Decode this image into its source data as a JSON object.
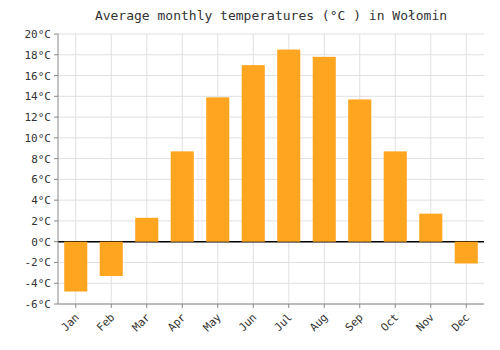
{
  "chart_data": {
    "type": "bar",
    "title": "Average monthly temperatures (°C ) in Wołomin",
    "categories": [
      "Jan",
      "Feb",
      "Mar",
      "Apr",
      "May",
      "Jun",
      "Jul",
      "Aug",
      "Sep",
      "Oct",
      "Nov",
      "Dec"
    ],
    "values": [
      -4.8,
      -3.3,
      2.3,
      8.7,
      13.9,
      17.0,
      18.5,
      17.8,
      13.7,
      8.7,
      2.7,
      -2.1
    ],
    "color": "#FFA520",
    "ylim": [
      -6,
      20
    ],
    "yticks": [
      {
        "value": -6,
        "label": "-6°C"
      },
      {
        "value": -4,
        "label": "-4°C"
      },
      {
        "value": -2,
        "label": "-2°C"
      },
      {
        "value": 0,
        "label": "0°C"
      },
      {
        "value": 2,
        "label": "2°C"
      },
      {
        "value": 4,
        "label": "4°C"
      },
      {
        "value": 6,
        "label": "6°C"
      },
      {
        "value": 8,
        "label": "8°C"
      },
      {
        "value": 10,
        "label": "10°C"
      },
      {
        "value": 12,
        "label": "12°C"
      },
      {
        "value": 14,
        "label": "14°C"
      },
      {
        "value": 16,
        "label": "16°C"
      },
      {
        "value": 18,
        "label": "18°C"
      },
      {
        "value": 20,
        "label": "20°C"
      }
    ],
    "grid": true
  }
}
